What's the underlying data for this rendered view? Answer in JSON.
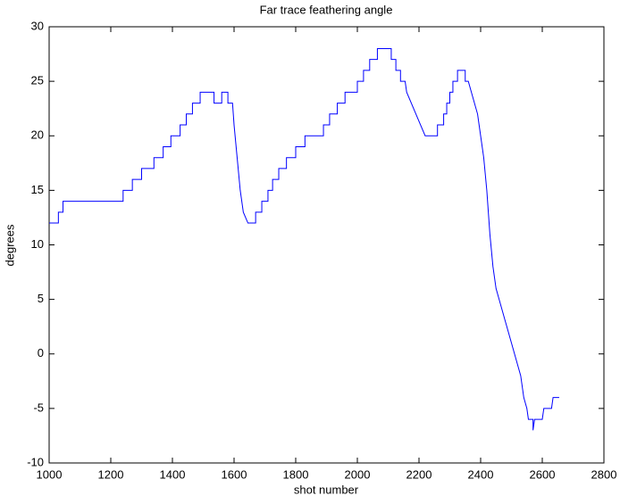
{
  "chart_data": {
    "type": "line",
    "title": "Far trace feathering angle",
    "xlabel": "shot number",
    "ylabel": "degrees",
    "color": "#0000ff",
    "xlim": [
      1000,
      2800
    ],
    "xticks": [
      1000,
      1200,
      1400,
      1600,
      1800,
      2000,
      2200,
      2400,
      2600,
      2800
    ],
    "ylim": [
      -10,
      30
    ],
    "yticks": [
      -10,
      -5,
      0,
      5,
      10,
      15,
      20,
      25,
      30
    ],
    "x": [
      1000,
      1030,
      1030,
      1045,
      1045,
      1240,
      1240,
      1270,
      1270,
      1300,
      1300,
      1340,
      1340,
      1370,
      1370,
      1395,
      1395,
      1425,
      1425,
      1445,
      1445,
      1465,
      1465,
      1490,
      1490,
      1535,
      1535,
      1560,
      1560,
      1580,
      1580,
      1595,
      1600,
      1610,
      1620,
      1630,
      1645,
      1670,
      1670,
      1690,
      1690,
      1710,
      1710,
      1725,
      1725,
      1745,
      1745,
      1770,
      1770,
      1800,
      1800,
      1830,
      1830,
      1890,
      1890,
      1910,
      1910,
      1935,
      1935,
      1960,
      1960,
      2000,
      2000,
      2020,
      2020,
      2040,
      2040,
      2065,
      2065,
      2110,
      2110,
      2125,
      2125,
      2140,
      2140,
      2155,
      2160,
      2175,
      2190,
      2205,
      2220,
      2260,
      2260,
      2280,
      2280,
      2290,
      2290,
      2300,
      2300,
      2310,
      2310,
      2325,
      2325,
      2350,
      2350,
      2360,
      2370,
      2380,
      2390,
      2400,
      2410,
      2420,
      2430,
      2440,
      2450,
      2460,
      2470,
      2480,
      2490,
      2500,
      2510,
      2520,
      2530,
      2540,
      2550,
      2555,
      2570,
      2570,
      2575,
      2600,
      2605,
      2630,
      2635,
      2655
    ],
    "values": [
      12,
      12,
      13,
      13,
      14,
      14,
      15,
      15,
      16,
      16,
      17,
      17,
      18,
      18,
      19,
      19,
      20,
      20,
      21,
      21,
      22,
      22,
      23,
      23,
      24,
      24,
      23,
      23,
      24,
      24,
      23,
      23,
      21,
      18,
      15,
      13,
      12,
      12,
      13,
      13,
      14,
      14,
      15,
      15,
      16,
      16,
      17,
      17,
      18,
      18,
      19,
      19,
      20,
      20,
      21,
      21,
      22,
      22,
      23,
      23,
      24,
      24,
      25,
      25,
      26,
      26,
      27,
      27,
      28,
      28,
      27,
      27,
      26,
      26,
      25,
      25,
      24,
      23,
      22,
      21,
      20,
      20,
      21,
      21,
      22,
      22,
      23,
      23,
      24,
      24,
      25,
      25,
      26,
      26,
      25,
      25,
      24,
      23,
      22,
      20,
      18,
      15,
      11,
      8,
      6,
      5,
      4,
      3,
      2,
      1,
      0,
      -1,
      -2,
      -4,
      -5,
      -6,
      -6,
      -7,
      -6,
      -6,
      -5,
      -5,
      -4,
      -4
    ]
  }
}
